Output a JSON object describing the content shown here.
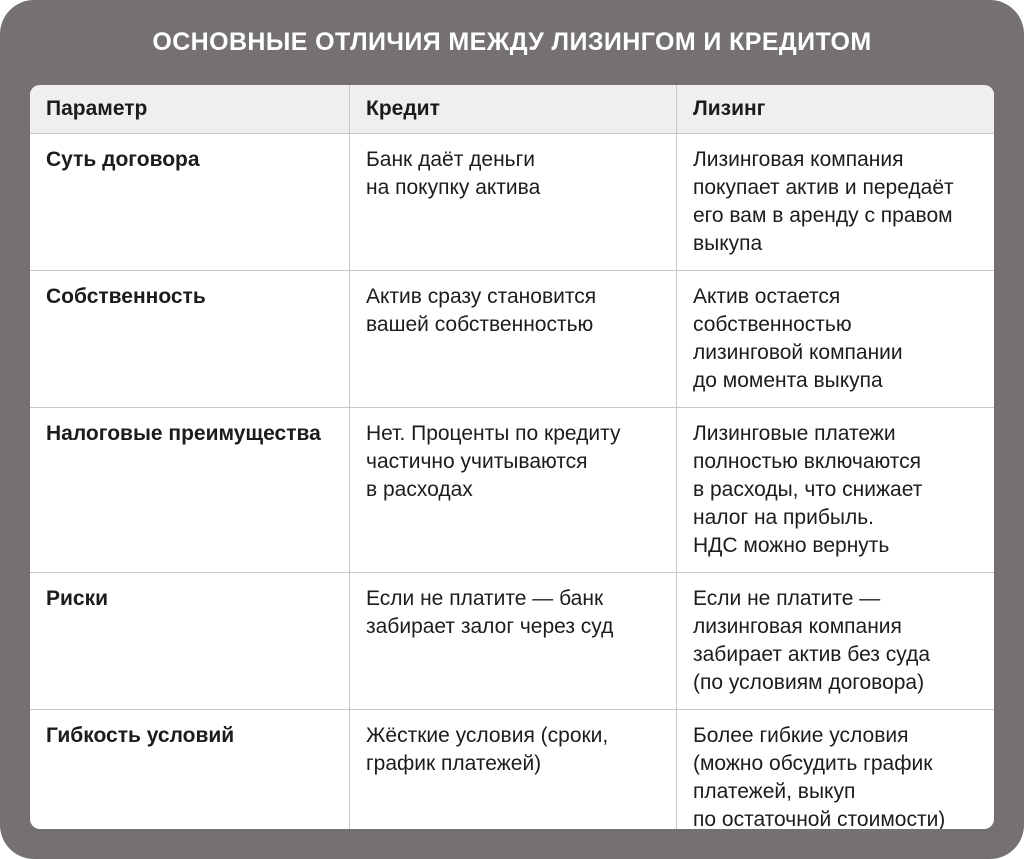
{
  "title": "ОСНОВНЫЕ ОТЛИЧИЯ МЕЖДУ ЛИЗИНГОМ И КРЕДИТОМ",
  "colors": {
    "card_background": "#747170",
    "table_background": "#ffffff",
    "header_row_background": "#efefed",
    "border": "#c8c8c8",
    "body_text": "#1c1c1c",
    "title_text": "#ffffff"
  },
  "table": {
    "headers": [
      "Параметр",
      "Кредит",
      "Лизинг"
    ],
    "rows": [
      {
        "param": "Суть договора",
        "credit": "Банк даёт деньги\nна покупку актива",
        "leasing": "Лизинговая компания\nпокупает актив и передаёт\nего вам в аренду с правом\nвыкупа"
      },
      {
        "param": "Собственность",
        "credit": "Актив сразу становится\nвашей собственностью",
        "leasing": "Актив остается\nсобственностью\nлизинговой компании\nдо момента выкупа"
      },
      {
        "param": "Налоговые преимущества",
        "credit": "Нет. Проценты по кредиту\nчастично учитываются\nв расходах",
        "leasing": "Лизинговые платежи\nполностью включаются\nв расходы, что снижает\nналог на прибыль.\nНДС можно вернуть"
      },
      {
        "param": "Риски",
        "credit": "Если не платите — банк\nзабирает залог через суд",
        "leasing": "Если не платите —\nлизинговая компания\nзабирает актив без суда\n(по условиям договора)"
      },
      {
        "param": "Гибкость условий",
        "credit": "Жёсткие условия (сроки,\nграфик платежей)",
        "leasing": "Более гибкие условия\n(можно обсудить график\nплатежей, выкуп\nпо остаточной стоимости)"
      }
    ]
  }
}
